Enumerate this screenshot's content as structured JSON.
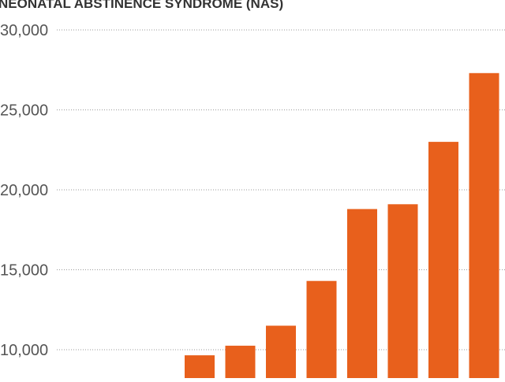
{
  "chart_data": {
    "type": "bar",
    "title": "NEONATAL ABSTINENCE SYNDROME (NAS)",
    "xlabel": "",
    "ylabel": "",
    "ylim": [
      9000,
      30000
    ],
    "yticks": [
      10000,
      15000,
      20000,
      25000,
      30000
    ],
    "ytick_labels": [
      "10,000",
      "15,000",
      "20,000",
      "25,000",
      "30,000"
    ],
    "grid": true,
    "legend": "none",
    "categories": [
      "",
      "",
      "",
      "",
      "",
      "",
      "",
      ""
    ],
    "values": [
      9650,
      10250,
      11500,
      14300,
      18800,
      19100,
      23000,
      27300
    ],
    "colors": {
      "bar": "#E8601C",
      "grid": "#9a9a9a",
      "text": "#555555",
      "title": "#333333"
    }
  }
}
